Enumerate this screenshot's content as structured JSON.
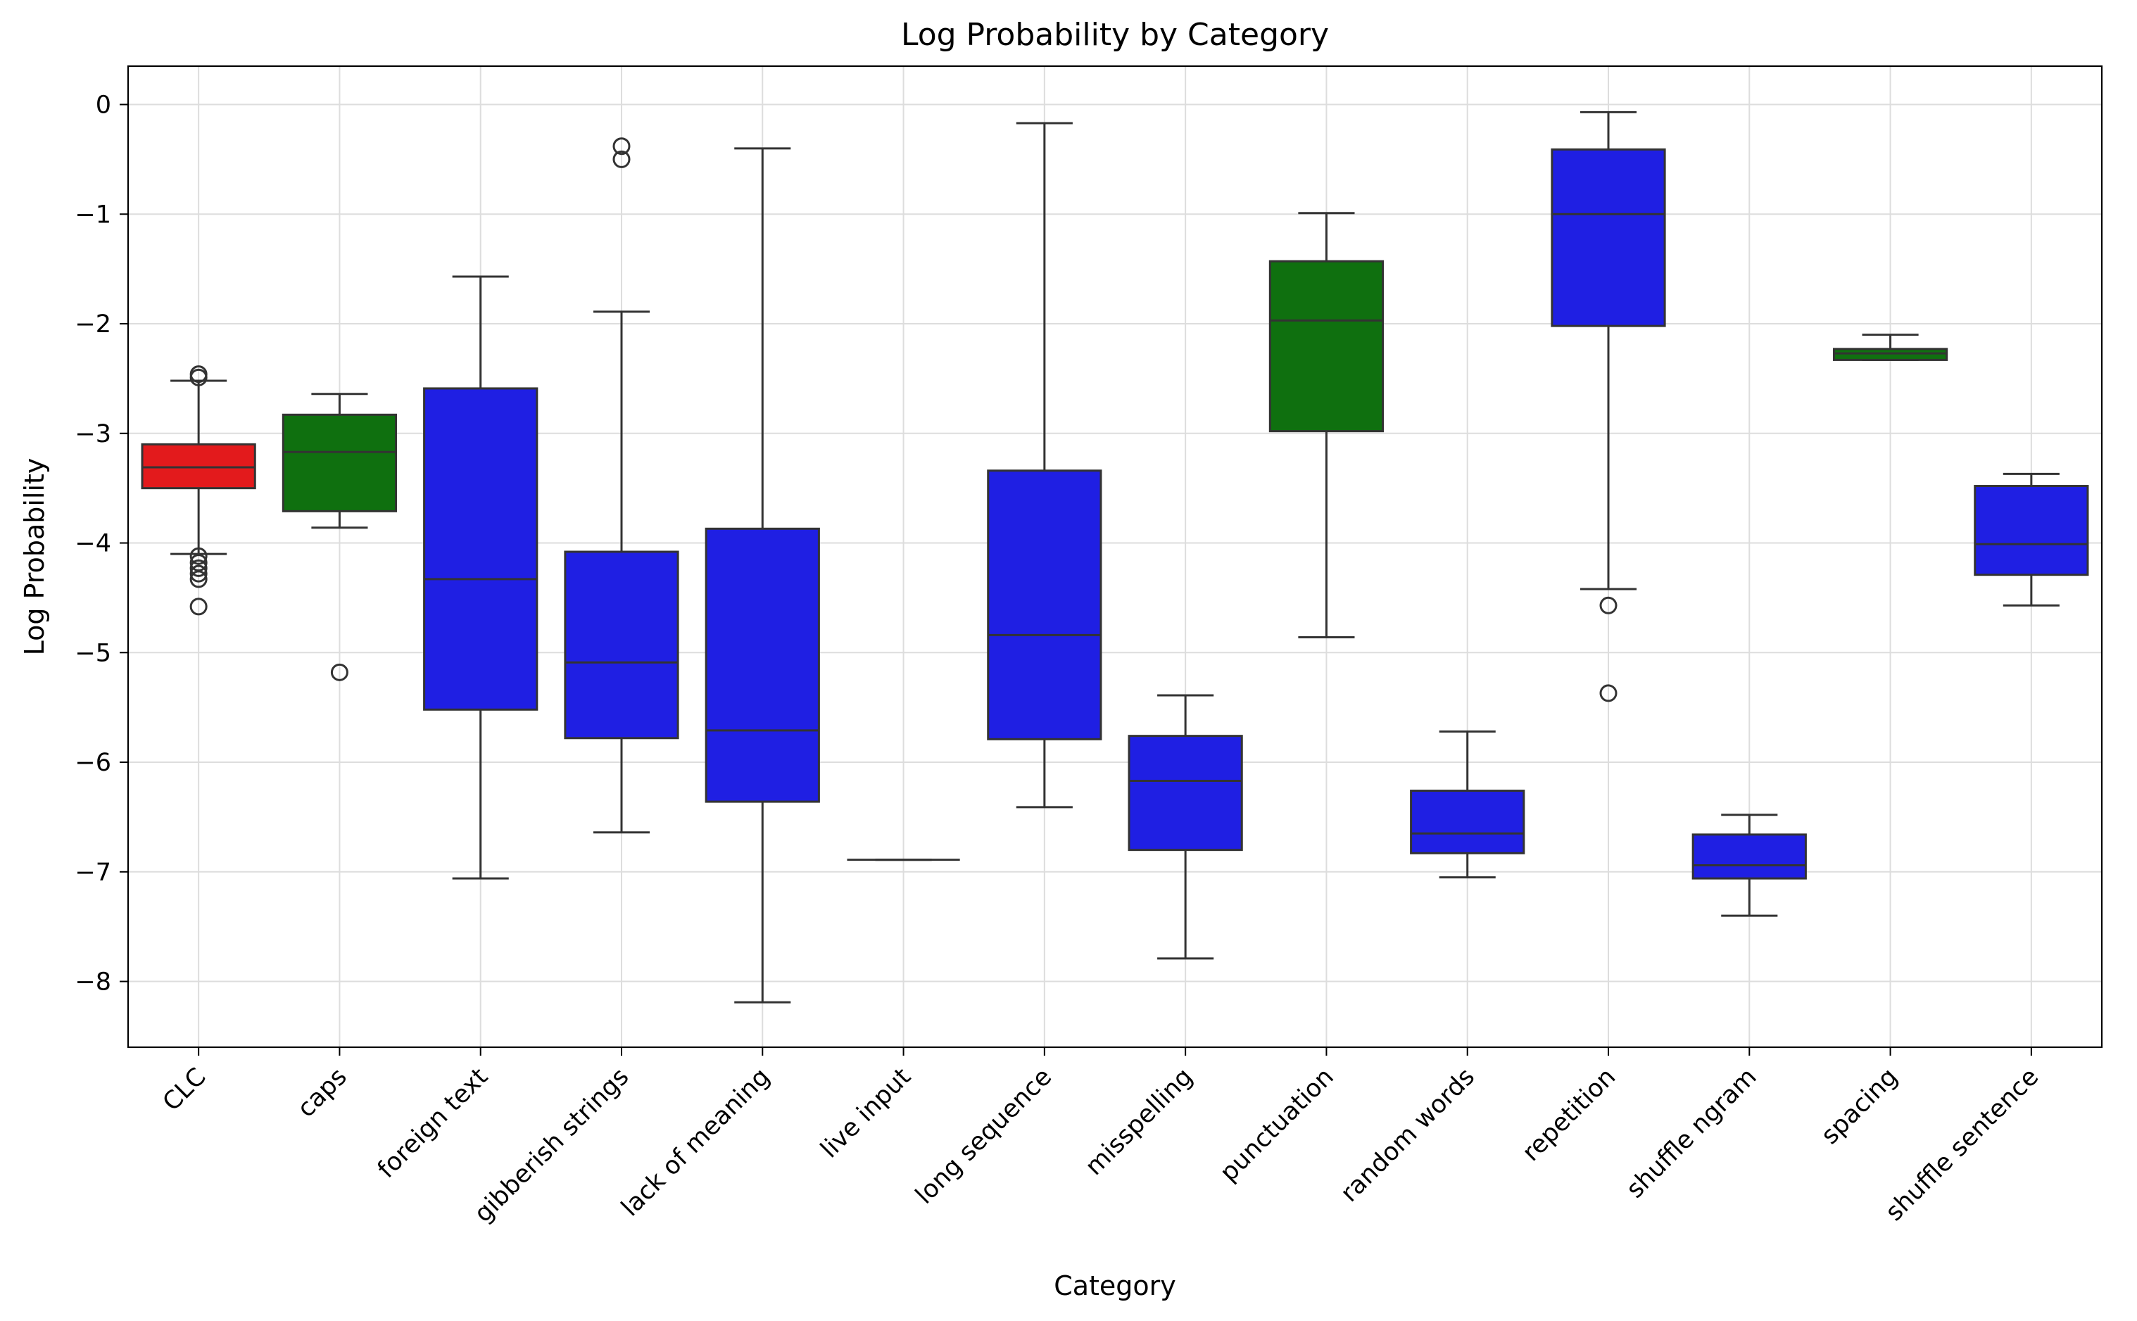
{
  "chart_data": {
    "type": "box",
    "title": "Log Probability by Category",
    "xlabel": "Category",
    "ylabel": "Log Probability",
    "ylim": [
      -8.6,
      0.35
    ],
    "yticks": [
      0,
      -1,
      -2,
      -3,
      -4,
      -5,
      -6,
      -7,
      -8
    ],
    "ytick_labels": [
      "0",
      "−1",
      "−2",
      "−3",
      "−4",
      "−5",
      "−6",
      "−7",
      "−8"
    ],
    "grid": true,
    "colors": {
      "red": "#e31a1c",
      "green": "#0f700f",
      "blue": "#1f1fe3",
      "edge": "#333333",
      "grid": "#dddddd"
    },
    "categories": [
      "CLC",
      "caps",
      "foreign text",
      "gibberish strings",
      "lack of meaning",
      "live input",
      "long sequence",
      "misspelling",
      "punctuation",
      "random words",
      "repetition",
      "shuffle ngram",
      "spacing",
      "shuffle sentence"
    ],
    "boxes": [
      {
        "category": "CLC",
        "color": "red",
        "whisker_low": -4.1,
        "q1": -3.5,
        "median": -3.31,
        "q3": -3.1,
        "whisker_high": -2.52,
        "outliers": [
          -2.46,
          -2.49,
          -4.12,
          -4.18,
          -4.23,
          -4.28,
          -4.33,
          -4.58
        ]
      },
      {
        "category": "caps",
        "color": "green",
        "whisker_low": -3.86,
        "q1": -3.71,
        "median": -3.17,
        "q3": -2.83,
        "whisker_high": -2.64,
        "outliers": [
          -5.18
        ]
      },
      {
        "category": "foreign text",
        "color": "blue",
        "whisker_low": -7.06,
        "q1": -5.52,
        "median": -4.33,
        "q3": -2.59,
        "whisker_high": -1.57,
        "outliers": []
      },
      {
        "category": "gibberish strings",
        "color": "blue",
        "whisker_low": -6.64,
        "q1": -5.78,
        "median": -5.09,
        "q3": -4.08,
        "whisker_high": -1.89,
        "outliers": [
          -0.38,
          -0.5
        ]
      },
      {
        "category": "lack of meaning",
        "color": "blue",
        "whisker_low": -8.19,
        "q1": -6.36,
        "median": -5.71,
        "q3": -3.87,
        "whisker_high": -0.4,
        "outliers": []
      },
      {
        "category": "live input",
        "color": "blue",
        "whisker_low": -6.89,
        "q1": -6.89,
        "median": -6.89,
        "q3": -6.89,
        "whisker_high": -6.89,
        "outliers": []
      },
      {
        "category": "long sequence",
        "color": "blue",
        "whisker_low": -6.41,
        "q1": -5.79,
        "median": -4.84,
        "q3": -3.34,
        "whisker_high": -0.17,
        "outliers": []
      },
      {
        "category": "misspelling",
        "color": "blue",
        "whisker_low": -7.79,
        "q1": -6.8,
        "median": -6.17,
        "q3": -5.76,
        "whisker_high": -5.39,
        "outliers": []
      },
      {
        "category": "punctuation",
        "color": "green",
        "whisker_low": -4.86,
        "q1": -2.98,
        "median": -1.97,
        "q3": -1.43,
        "whisker_high": -0.99,
        "outliers": []
      },
      {
        "category": "random words",
        "color": "blue",
        "whisker_low": -7.05,
        "q1": -6.83,
        "median": -6.65,
        "q3": -6.26,
        "whisker_high": -5.72,
        "outliers": []
      },
      {
        "category": "repetition",
        "color": "blue",
        "whisker_low": -4.42,
        "q1": -2.02,
        "median": -1.0,
        "q3": -0.41,
        "whisker_high": -0.07,
        "outliers": [
          -4.57,
          -5.37
        ]
      },
      {
        "category": "shuffle ngram",
        "color": "blue",
        "whisker_low": -7.4,
        "q1": -7.06,
        "median": -6.94,
        "q3": -6.66,
        "whisker_high": -6.48,
        "outliers": []
      },
      {
        "category": "spacing",
        "color": "green",
        "whisker_low": -2.33,
        "q1": -2.33,
        "median": -2.27,
        "q3": -2.23,
        "whisker_high": -2.1,
        "outliers": []
      },
      {
        "category": "shuffle sentence",
        "color": "blue",
        "whisker_low": -4.57,
        "q1": -4.29,
        "median": -4.01,
        "q3": -3.48,
        "whisker_high": -3.37,
        "outliers": []
      }
    ]
  }
}
